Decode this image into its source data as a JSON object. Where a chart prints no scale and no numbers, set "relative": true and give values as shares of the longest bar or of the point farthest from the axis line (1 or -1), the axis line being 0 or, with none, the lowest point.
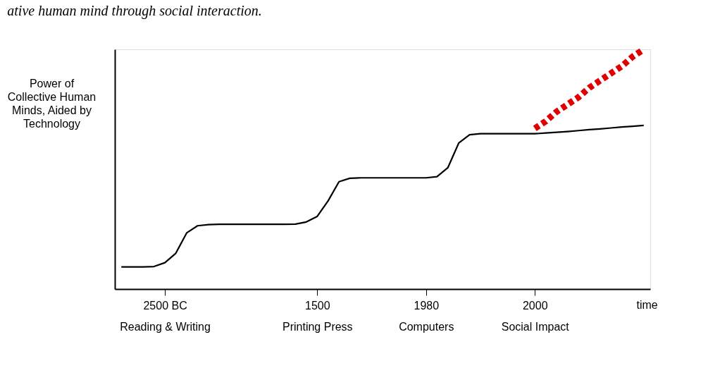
{
  "chart_data": {
    "type": "line",
    "relative": true,
    "xlabel": "time",
    "ylabel": "Power of Collective Human Minds, Aided by Technology",
    "annotations": [
      "ative human mind through social interaction."
    ],
    "categories": [
      null,
      null,
      null,
      null,
      "2500 BC\nReading & Writing",
      null,
      null,
      null,
      null,
      null,
      null,
      null,
      null,
      null,
      null,
      null,
      null,
      null,
      "1500\nPrinting Press",
      null,
      null,
      null,
      null,
      null,
      null,
      null,
      null,
      null,
      "1980\nComputers",
      null,
      null,
      null,
      null,
      null,
      null,
      null,
      null,
      null,
      "2000\nSocial Impact",
      null,
      null,
      null,
      null,
      null,
      null,
      null,
      null,
      null,
      null
    ],
    "series": [
      {
        "color": "#000000",
        "line_style": "solid",
        "values": [
          0.092,
          0.092,
          0.092,
          0.094,
          0.11,
          0.149,
          0.234,
          0.264,
          0.269,
          0.27,
          0.27,
          0.27,
          0.27,
          0.27,
          0.27,
          0.27,
          0.271,
          0.28,
          0.303,
          0.368,
          0.448,
          0.462,
          0.464,
          0.464,
          0.464,
          0.464,
          0.464,
          0.464,
          0.464,
          0.469,
          0.506,
          0.609,
          0.644,
          0.648,
          0.648,
          0.648,
          0.648,
          0.648,
          0.648,
          0.651,
          0.654,
          0.657,
          0.661,
          0.665,
          0.668,
          0.672,
          0.676,
          0.679,
          0.683
        ]
      },
      {
        "color": "#e00000",
        "line_style": "dashed",
        "values": [
          null,
          null,
          null,
          null,
          null,
          null,
          null,
          null,
          null,
          null,
          null,
          null,
          null,
          null,
          null,
          null,
          null,
          null,
          null,
          null,
          null,
          null,
          null,
          null,
          null,
          null,
          null,
          null,
          null,
          null,
          null,
          null,
          null,
          null,
          null,
          null,
          null,
          null,
          0.67,
          0.7,
          0.74,
          0.77,
          0.8,
          0.84,
          0.87,
          0.9,
          0.93,
          0.97,
          1.0
        ]
      }
    ],
    "grid": false,
    "marker": "none"
  }
}
